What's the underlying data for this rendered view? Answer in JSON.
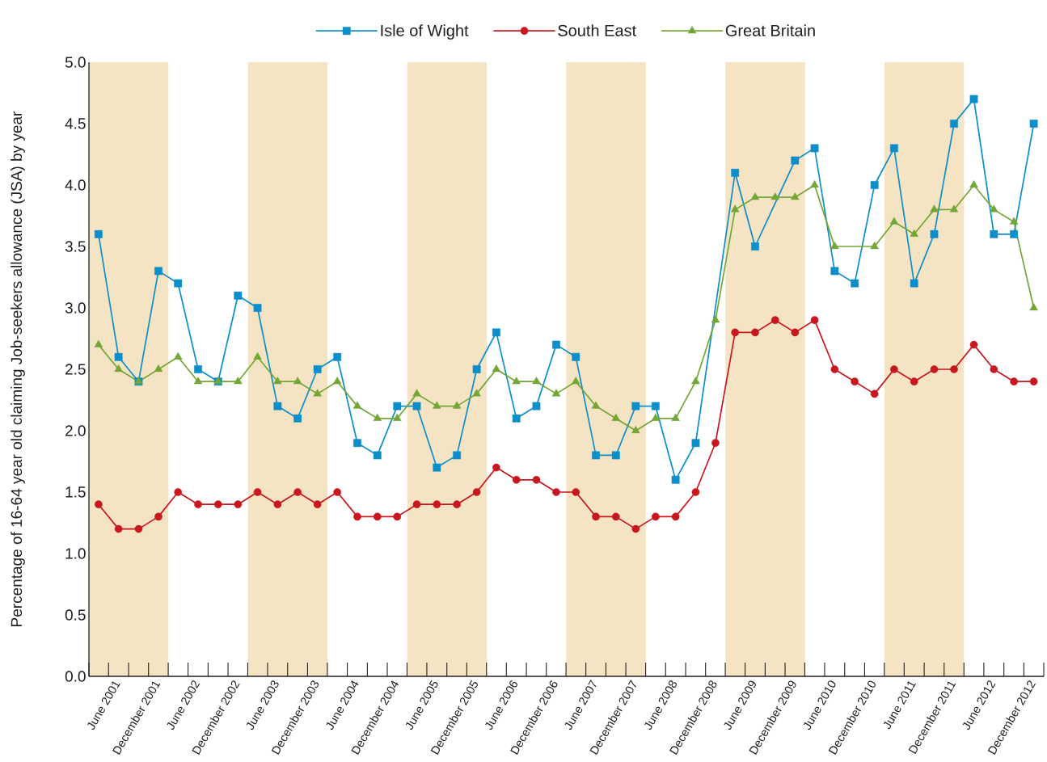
{
  "chart_data": {
    "type": "line",
    "ylabel": "Percentage of 16-64 year old claiming Job-seekers allowance (JSA) by year",
    "x": [
      "2001-03",
      "2001-06",
      "2001-09",
      "2001-12",
      "2002-03",
      "2002-06",
      "2002-09",
      "2002-12",
      "2003-03",
      "2003-06",
      "2003-09",
      "2003-12",
      "2004-03",
      "2004-06",
      "2004-09",
      "2004-12",
      "2005-03",
      "2005-06",
      "2005-09",
      "2005-12",
      "2006-03",
      "2006-06",
      "2006-09",
      "2006-12",
      "2007-03",
      "2007-06",
      "2007-09",
      "2007-12",
      "2008-03",
      "2008-06",
      "2008-09",
      "2008-12",
      "2009-03",
      "2009-06",
      "2009-09",
      "2009-12",
      "2010-03",
      "2010-06",
      "2010-09",
      "2010-12",
      "2011-03",
      "2011-06",
      "2011-09",
      "2011-12",
      "2012-03",
      "2012-06",
      "2012-09",
      "2012-12"
    ],
    "series": [
      {
        "name": "Isle of Wight",
        "color": "#0b8ec9",
        "marker": "square",
        "values": [
          3.6,
          2.6,
          2.4,
          3.3,
          3.2,
          2.5,
          2.4,
          3.1,
          3.0,
          2.2,
          2.1,
          2.5,
          2.6,
          1.9,
          1.8,
          2.2,
          2.2,
          1.7,
          1.8,
          2.5,
          2.8,
          2.1,
          2.2,
          2.7,
          2.6,
          1.8,
          1.8,
          2.2,
          2.2,
          1.6,
          1.9,
          null,
          4.1,
          3.5,
          null,
          4.2,
          4.3,
          3.3,
          3.2,
          4.0,
          4.3,
          3.2,
          3.6,
          4.5,
          4.7,
          3.6,
          3.6,
          4.5
        ]
      },
      {
        "name": "South East",
        "color": "#c8171e",
        "marker": "circle",
        "values": [
          1.4,
          1.2,
          1.2,
          1.3,
          1.5,
          1.4,
          1.4,
          1.4,
          1.5,
          1.4,
          1.5,
          1.4,
          1.5,
          1.3,
          1.3,
          1.3,
          1.4,
          1.4,
          1.4,
          1.5,
          1.7,
          1.6,
          1.6,
          1.5,
          1.5,
          1.3,
          1.3,
          1.2,
          1.3,
          1.3,
          1.5,
          1.9,
          2.8,
          2.8,
          2.9,
          2.8,
          2.9,
          2.5,
          2.4,
          2.3,
          2.5,
          2.4,
          2.5,
          2.5,
          2.7,
          2.5,
          2.4,
          2.4
        ]
      },
      {
        "name": "Great Britain",
        "color": "#74a636",
        "marker": "triangle",
        "values": [
          2.7,
          2.5,
          2.4,
          2.5,
          2.6,
          2.4,
          2.4,
          2.4,
          2.6,
          2.4,
          2.4,
          2.3,
          2.4,
          2.2,
          2.1,
          2.1,
          2.3,
          2.2,
          2.2,
          2.3,
          2.5,
          2.4,
          2.4,
          2.3,
          2.4,
          2.2,
          2.1,
          2.0,
          2.1,
          2.1,
          2.4,
          2.9,
          3.8,
          3.9,
          3.9,
          3.9,
          4.0,
          3.5,
          null,
          3.5,
          3.7,
          3.6,
          3.8,
          3.8,
          4.0,
          3.8,
          3.7,
          3.0
        ]
      }
    ],
    "xlim": [
      "2001-01-16",
      "2013-01-16"
    ],
    "xticks": [
      {
        "value": "2001-06",
        "label": "June 2001"
      },
      {
        "value": "2001-12",
        "label": "December 2001"
      },
      {
        "value": "2002-06",
        "label": "June 2002"
      },
      {
        "value": "2002-12",
        "label": "December 2002"
      },
      {
        "value": "2003-06",
        "label": "June 2003"
      },
      {
        "value": "2003-12",
        "label": "December 2003"
      },
      {
        "value": "2004-06",
        "label": "June 2004"
      },
      {
        "value": "2004-12",
        "label": "December 2004"
      },
      {
        "value": "2005-06",
        "label": "June 2005"
      },
      {
        "value": "2005-12",
        "label": "December 2005"
      },
      {
        "value": "2006-06",
        "label": "June 2006"
      },
      {
        "value": "2006-12",
        "label": "December 2006"
      },
      {
        "value": "2007-06",
        "label": "June 2007"
      },
      {
        "value": "2007-12",
        "label": "December 2007"
      },
      {
        "value": "2008-06",
        "label": "June 2008"
      },
      {
        "value": "2008-12",
        "label": "December 2008"
      },
      {
        "value": "2009-06",
        "label": "June 2009"
      },
      {
        "value": "2009-12",
        "label": "December 2009"
      },
      {
        "value": "2010-06",
        "label": "June 2010"
      },
      {
        "value": "2010-12",
        "label": "December 2010"
      },
      {
        "value": "2011-06",
        "label": "June 2011"
      },
      {
        "value": "2011-12",
        "label": "December 2011"
      },
      {
        "value": "2012-06",
        "label": "June 2012"
      },
      {
        "value": "2012-12",
        "label": "December 2012"
      }
    ],
    "ylim": [
      0,
      5
    ],
    "yticks": [
      {
        "value": 0,
        "label": "0.0"
      },
      0.5,
      {
        "value": 1,
        "label": "1.0"
      },
      1.5,
      {
        "value": 2,
        "label": "2.0"
      },
      2.5,
      {
        "value": 3,
        "label": "3.0"
      },
      3.5,
      {
        "value": 4,
        "label": "4.0"
      },
      4.5,
      {
        "value": 5,
        "label": "5.0"
      }
    ],
    "bands": [
      {
        "axis": "x",
        "from": "2001-01-16",
        "to": "2002-01-16",
        "color": "#f5e4c4"
      },
      {
        "axis": "x",
        "from": "2003-01-16",
        "to": "2004-01-16",
        "color": "#f5e4c4"
      },
      {
        "axis": "x",
        "from": "2005-01-16",
        "to": "2006-01-16",
        "color": "#f5e4c4"
      },
      {
        "axis": "x",
        "from": "2007-01-16",
        "to": "2008-01-16",
        "color": "#f5e4c4"
      },
      {
        "axis": "x",
        "from": "2009-01-16",
        "to": "2010-01-16",
        "color": "#f5e4c4"
      },
      {
        "axis": "x",
        "from": "2011-01-16",
        "to": "2012-01-16",
        "color": "#f5e4c4"
      }
    ],
    "legend": "top"
  }
}
